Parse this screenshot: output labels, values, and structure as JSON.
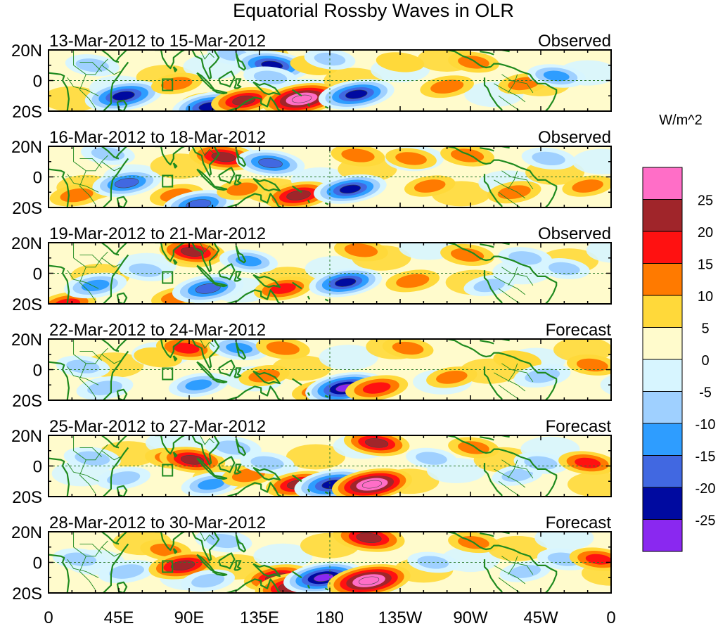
{
  "title": "Equatorial Rossby Waves in OLR",
  "panels": [
    {
      "date_range": "13-Mar-2012 to 15-Mar-2012",
      "label": "Observed"
    },
    {
      "date_range": "16-Mar-2012 to 18-Mar-2012",
      "label": "Observed"
    },
    {
      "date_range": "19-Mar-2012 to 21-Mar-2012",
      "label": "Observed"
    },
    {
      "date_range": "22-Mar-2012 to 24-Mar-2012",
      "label": "Forecast"
    },
    {
      "date_range": "25-Mar-2012 to 27-Mar-2012",
      "label": "Forecast"
    },
    {
      "date_range": "28-Mar-2012 to 30-Mar-2012",
      "label": "Forecast"
    }
  ],
  "lat_labels": [
    "20N",
    "0",
    "20S"
  ],
  "lon_labels": [
    "0",
    "45E",
    "90E",
    "135E",
    "180",
    "135W",
    "90W",
    "45W",
    "0"
  ],
  "colorbar": {
    "units": "W/m^2",
    "tick_labels": [
      "25",
      "20",
      "15",
      "10",
      "5",
      "0",
      "-5",
      "-10",
      "-15",
      "-20",
      "-25"
    ],
    "colors_top_to_bottom": [
      "#ff6ec7",
      "#a0252a",
      "#ff1111",
      "#ff7a00",
      "#ffd93a",
      "#fffbcc",
      "#d7f5ff",
      "#9fd0ff",
      "#2e9dff",
      "#4168e1",
      "#000aa0",
      "#8a28f0"
    ]
  },
  "colors": {
    "coast": "#1f8a1f",
    "frame": "#000000"
  },
  "anomalies": [
    [
      {
        "lon": 28,
        "lat": 10,
        "v": -12
      },
      {
        "lon": 48,
        "lat": -10,
        "v": -28
      },
      {
        "lon": 82,
        "lat": -2,
        "v": 10
      },
      {
        "lon": 98,
        "lat": -14,
        "v": 5
      },
      {
        "lon": 103,
        "lat": -17,
        "v": -26
      },
      {
        "lon": 118,
        "lat": 17,
        "v": -10
      },
      {
        "lon": 125,
        "lat": -13,
        "v": 20
      },
      {
        "lon": 143,
        "lat": 10,
        "v": -26
      },
      {
        "lon": 142,
        "lat": 2,
        "v": -12
      },
      {
        "lon": 162,
        "lat": -12,
        "v": 30
      },
      {
        "lon": 170,
        "lat": 10,
        "v": 8
      },
      {
        "lon": 180,
        "lat": 14,
        "v": -10
      },
      {
        "lon": 197,
        "lat": -9,
        "v": -27
      },
      {
        "lon": 225,
        "lat": 12,
        "v": 8
      },
      {
        "lon": 255,
        "lat": -4,
        "v": 12
      },
      {
        "lon": 272,
        "lat": 12,
        "v": 10
      },
      {
        "lon": 304,
        "lat": -2,
        "v": 10
      },
      {
        "lon": 325,
        "lat": 3,
        "v": -15
      }
    ],
    [
      {
        "lon": 18,
        "lat": -12,
        "v": 12
      },
      {
        "lon": 38,
        "lat": 15,
        "v": -12
      },
      {
        "lon": 50,
        "lat": -4,
        "v": -22
      },
      {
        "lon": 82,
        "lat": -12,
        "v": 12
      },
      {
        "lon": 96,
        "lat": -18,
        "v": -24
      },
      {
        "lon": 112,
        "lat": 13,
        "v": 22
      },
      {
        "lon": 124,
        "lat": -8,
        "v": 10
      },
      {
        "lon": 142,
        "lat": 9,
        "v": -22
      },
      {
        "lon": 160,
        "lat": -12,
        "v": 22
      },
      {
        "lon": 193,
        "lat": -8,
        "v": -25
      },
      {
        "lon": 198,
        "lat": 14,
        "v": 12
      },
      {
        "lon": 232,
        "lat": 12,
        "v": 10
      },
      {
        "lon": 244,
        "lat": -6,
        "v": 10
      },
      {
        "lon": 268,
        "lat": 14,
        "v": 12
      },
      {
        "lon": 298,
        "lat": -10,
        "v": 12
      },
      {
        "lon": 320,
        "lat": 12,
        "v": -12
      },
      {
        "lon": 345,
        "lat": -6,
        "v": 10
      }
    ],
    [
      {
        "lon": 12,
        "lat": -20,
        "v": 15
      },
      {
        "lon": 30,
        "lat": -8,
        "v": -18
      },
      {
        "lon": 62,
        "lat": 2,
        "v": -12
      },
      {
        "lon": 82,
        "lat": -16,
        "v": 10
      },
      {
        "lon": 92,
        "lat": 14,
        "v": 20
      },
      {
        "lon": 102,
        "lat": -10,
        "v": -24
      },
      {
        "lon": 128,
        "lat": 8,
        "v": -15
      },
      {
        "lon": 150,
        "lat": -10,
        "v": 15
      },
      {
        "lon": 190,
        "lat": -6,
        "v": -25
      },
      {
        "lon": 200,
        "lat": 15,
        "v": 12
      },
      {
        "lon": 233,
        "lat": -5,
        "v": 12
      },
      {
        "lon": 268,
        "lat": 12,
        "v": 12
      },
      {
        "lon": 282,
        "lat": -8,
        "v": -10
      },
      {
        "lon": 305,
        "lat": 10,
        "v": -12
      },
      {
        "lon": 330,
        "lat": 3,
        "v": -10
      }
    ],
    [
      {
        "lon": 22,
        "lat": 2,
        "v": -12
      },
      {
        "lon": 36,
        "lat": -12,
        "v": -14
      },
      {
        "lon": 70,
        "lat": 8,
        "v": 8
      },
      {
        "lon": 88,
        "lat": 14,
        "v": 16
      },
      {
        "lon": 96,
        "lat": -10,
        "v": -16
      },
      {
        "lon": 122,
        "lat": 14,
        "v": -16
      },
      {
        "lon": 138,
        "lat": -4,
        "v": 10
      },
      {
        "lon": 150,
        "lat": 14,
        "v": 12
      },
      {
        "lon": 172,
        "lat": -14,
        "v": 10
      },
      {
        "lon": 190,
        "lat": -12,
        "v": -30
      },
      {
        "lon": 210,
        "lat": -12,
        "v": 18
      },
      {
        "lon": 230,
        "lat": 14,
        "v": 10
      },
      {
        "lon": 258,
        "lat": -5,
        "v": 10
      },
      {
        "lon": 300,
        "lat": 6,
        "v": 8
      },
      {
        "lon": 316,
        "lat": -4,
        "v": -14
      },
      {
        "lon": 348,
        "lat": 3,
        "v": 10
      }
    ],
    [
      {
        "lon": 28,
        "lat": 5,
        "v": -14
      },
      {
        "lon": 48,
        "lat": -8,
        "v": -12
      },
      {
        "lon": 78,
        "lat": 5,
        "v": 10
      },
      {
        "lon": 92,
        "lat": 4,
        "v": 20
      },
      {
        "lon": 104,
        "lat": -12,
        "v": -16
      },
      {
        "lon": 118,
        "lat": 12,
        "v": -14
      },
      {
        "lon": 128,
        "lat": -6,
        "v": 12
      },
      {
        "lon": 140,
        "lat": 2,
        "v": -12
      },
      {
        "lon": 160,
        "lat": -12,
        "v": 20
      },
      {
        "lon": 182,
        "lat": -12,
        "v": -28
      },
      {
        "lon": 207,
        "lat": -12,
        "v": 30
      },
      {
        "lon": 210,
        "lat": 15,
        "v": 20
      },
      {
        "lon": 245,
        "lat": 5,
        "v": -10
      },
      {
        "lon": 272,
        "lat": 12,
        "v": 10
      },
      {
        "lon": 300,
        "lat": -6,
        "v": -10
      },
      {
        "lon": 315,
        "lat": 2,
        "v": -12
      },
      {
        "lon": 345,
        "lat": 2,
        "v": 15
      }
    ],
    [
      {
        "lon": 20,
        "lat": 2,
        "v": -12
      },
      {
        "lon": 50,
        "lat": -6,
        "v": -14
      },
      {
        "lon": 75,
        "lat": 8,
        "v": 10
      },
      {
        "lon": 86,
        "lat": -2,
        "v": 22
      },
      {
        "lon": 102,
        "lat": -12,
        "v": -12
      },
      {
        "lon": 112,
        "lat": 14,
        "v": -14
      },
      {
        "lon": 146,
        "lat": -10,
        "v": 20
      },
      {
        "lon": 155,
        "lat": -16,
        "v": 24
      },
      {
        "lon": 176,
        "lat": -10,
        "v": -30
      },
      {
        "lon": 205,
        "lat": -12,
        "v": 32
      },
      {
        "lon": 205,
        "lat": 16,
        "v": 24
      },
      {
        "lon": 246,
        "lat": 0,
        "v": -10
      },
      {
        "lon": 272,
        "lat": 13,
        "v": 10
      },
      {
        "lon": 305,
        "lat": -6,
        "v": -10
      },
      {
        "lon": 330,
        "lat": 2,
        "v": -12
      },
      {
        "lon": 352,
        "lat": 2,
        "v": 15
      }
    ]
  ]
}
